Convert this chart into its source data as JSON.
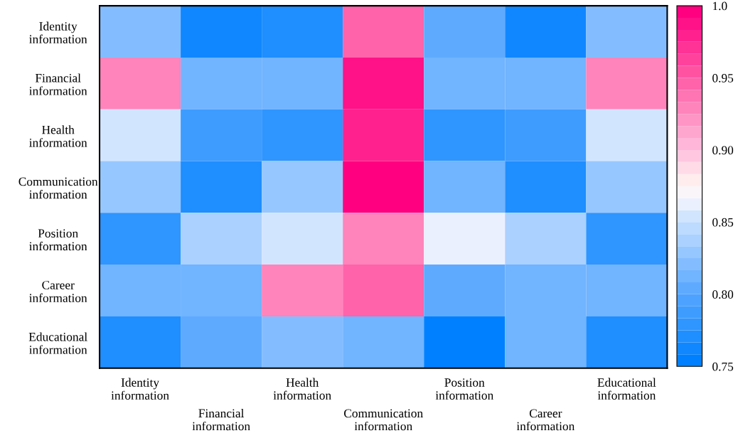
{
  "chart_data": {
    "type": "heatmap",
    "categories": [
      "Identity\ninformation",
      "Financial\ninformation",
      "Health\ninformation",
      "Communication\ninformation",
      "Position\ninformation",
      "Career\ninformation",
      "Educational\ninformation"
    ],
    "y_categories": [
      "Identity\ninformation",
      "Financial\ninformation",
      "Health\ninformation",
      "Communication\ninformation",
      "Position\ninformation",
      "Career\ninformation",
      "Educational\ninformation"
    ],
    "cells": [
      [
        0.82,
        0.76,
        0.77,
        0.95,
        0.8,
        0.76,
        0.82
      ],
      [
        0.925,
        0.81,
        0.815,
        0.99,
        0.815,
        0.81,
        0.925
      ],
      [
        0.855,
        0.79,
        0.78,
        0.98,
        0.78,
        0.785,
        0.855
      ],
      [
        0.83,
        0.77,
        0.83,
        1.0,
        0.815,
        0.77,
        0.83
      ],
      [
        0.78,
        0.84,
        0.855,
        0.925,
        0.86,
        0.84,
        0.78
      ],
      [
        0.815,
        0.815,
        0.925,
        0.95,
        0.8,
        0.815,
        0.815
      ],
      [
        0.77,
        0.8,
        0.82,
        0.815,
        0.75,
        0.81,
        0.77
      ]
    ],
    "clim": [
      0.75,
      1.0
    ],
    "cticks": [
      0.75,
      {
        "value": 0.8,
        "label": "0.80"
      },
      0.85,
      {
        "value": 0.9,
        "label": "0.90"
      },
      0.95,
      {
        "value": 1.0,
        "label": "1.0"
      }
    ]
  }
}
